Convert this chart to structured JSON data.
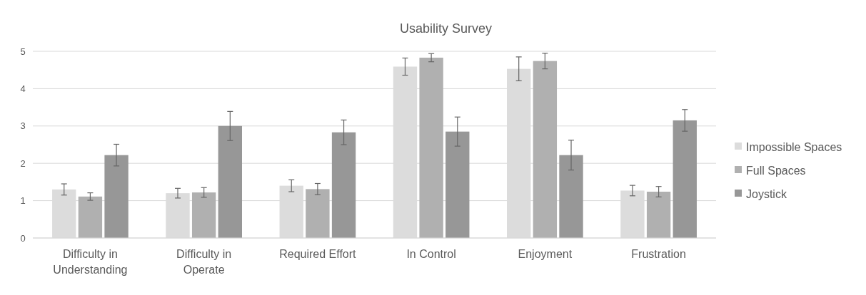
{
  "chart_data": {
    "type": "bar",
    "title": "Usability Survey",
    "categories": [
      "Difficulty in Understanding",
      "Difficulty in Operate",
      "Required Effort",
      "In Control",
      "Enjoyment",
      "Frustration"
    ],
    "series": [
      {
        "name": "Impossible Spaces",
        "color": "#dcdcdc",
        "values": [
          1.3,
          1.2,
          1.4,
          4.59,
          4.53,
          1.27
        ],
        "errors": [
          0.15,
          0.13,
          0.16,
          0.23,
          0.32,
          0.14
        ]
      },
      {
        "name": "Full Spaces",
        "color": "#b0b0b0",
        "values": [
          1.11,
          1.22,
          1.31,
          4.83,
          4.74,
          1.24
        ],
        "errors": [
          0.1,
          0.13,
          0.15,
          0.11,
          0.21,
          0.14
        ]
      },
      {
        "name": "Joystick",
        "color": "#979797",
        "values": [
          2.22,
          3.0,
          2.83,
          2.85,
          2.22,
          3.15
        ],
        "errors": [
          0.29,
          0.39,
          0.33,
          0.39,
          0.4,
          0.29
        ]
      }
    ],
    "ylim": [
      0,
      5
    ],
    "yticks": [
      0,
      1,
      2,
      3,
      4,
      5
    ],
    "grid": "y",
    "legend": "right"
  }
}
